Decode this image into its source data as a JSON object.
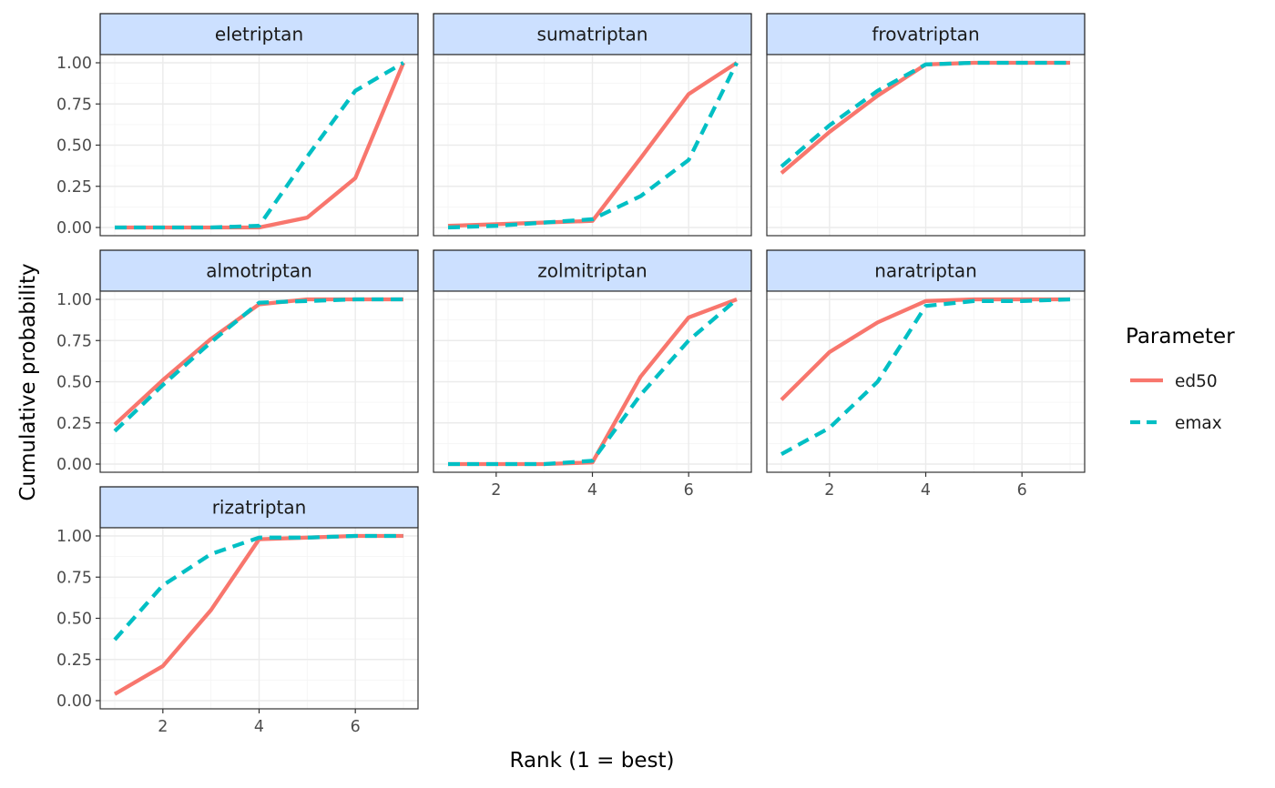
{
  "chart_data": {
    "type": "line",
    "facet": true,
    "xlabel": "Rank (1 = best)",
    "ylabel": "Cumulative probability",
    "xlim": [
      1,
      7
    ],
    "ylim": [
      0,
      1
    ],
    "x": [
      1,
      2,
      3,
      4,
      5,
      6,
      7
    ],
    "x_ticks": [
      "2",
      "4",
      "6"
    ],
    "y_ticks": [
      "0.00",
      "0.25",
      "0.50",
      "0.75",
      "1.00"
    ],
    "grid": true,
    "legend": {
      "title": "Parameter",
      "position": "right",
      "entries": [
        {
          "name": "ed50",
          "color": "#f8766d",
          "dash": "solid"
        },
        {
          "name": "emax",
          "color": "#00bfc4",
          "dash": "dashed"
        }
      ]
    },
    "panels": [
      {
        "title": "eletriptan",
        "series": [
          {
            "name": "ed50",
            "values": [
              0.0,
              0.0,
              0.0,
              0.0,
              0.06,
              0.3,
              1.0
            ]
          },
          {
            "name": "emax",
            "values": [
              0.0,
              0.0,
              0.0,
              0.01,
              0.43,
              0.83,
              1.0
            ]
          }
        ]
      },
      {
        "title": "sumatriptan",
        "series": [
          {
            "name": "ed50",
            "values": [
              0.01,
              0.02,
              0.03,
              0.04,
              0.42,
              0.81,
              1.0
            ]
          },
          {
            "name": "emax",
            "values": [
              0.0,
              0.01,
              0.03,
              0.05,
              0.19,
              0.41,
              1.0
            ]
          }
        ]
      },
      {
        "title": "frovatriptan",
        "series": [
          {
            "name": "ed50",
            "values": [
              0.33,
              0.58,
              0.8,
              0.99,
              1.0,
              1.0,
              1.0
            ]
          },
          {
            "name": "emax",
            "values": [
              0.37,
              0.62,
              0.83,
              0.99,
              1.0,
              1.0,
              1.0
            ]
          }
        ]
      },
      {
        "title": "almotriptan",
        "series": [
          {
            "name": "ed50",
            "values": [
              0.24,
              0.51,
              0.76,
              0.97,
              1.0,
              1.0,
              1.0
            ]
          },
          {
            "name": "emax",
            "values": [
              0.2,
              0.48,
              0.74,
              0.98,
              0.99,
              1.0,
              1.0
            ]
          }
        ]
      },
      {
        "title": "zolmitriptan",
        "series": [
          {
            "name": "ed50",
            "values": [
              0.0,
              0.0,
              0.0,
              0.01,
              0.53,
              0.89,
              1.0
            ]
          },
          {
            "name": "emax",
            "values": [
              0.0,
              0.0,
              0.0,
              0.02,
              0.42,
              0.75,
              1.0
            ]
          }
        ]
      },
      {
        "title": "naratriptan",
        "series": [
          {
            "name": "ed50",
            "values": [
              0.39,
              0.68,
              0.86,
              0.99,
              1.0,
              1.0,
              1.0
            ]
          },
          {
            "name": "emax",
            "values": [
              0.06,
              0.22,
              0.5,
              0.96,
              0.99,
              0.99,
              1.0
            ]
          }
        ]
      },
      {
        "title": "rizatriptan",
        "series": [
          {
            "name": "ed50",
            "values": [
              0.04,
              0.21,
              0.55,
              0.98,
              0.99,
              1.0,
              1.0
            ]
          },
          {
            "name": "emax",
            "values": [
              0.37,
              0.7,
              0.89,
              0.99,
              0.99,
              1.0,
              1.0
            ]
          }
        ]
      }
    ]
  }
}
